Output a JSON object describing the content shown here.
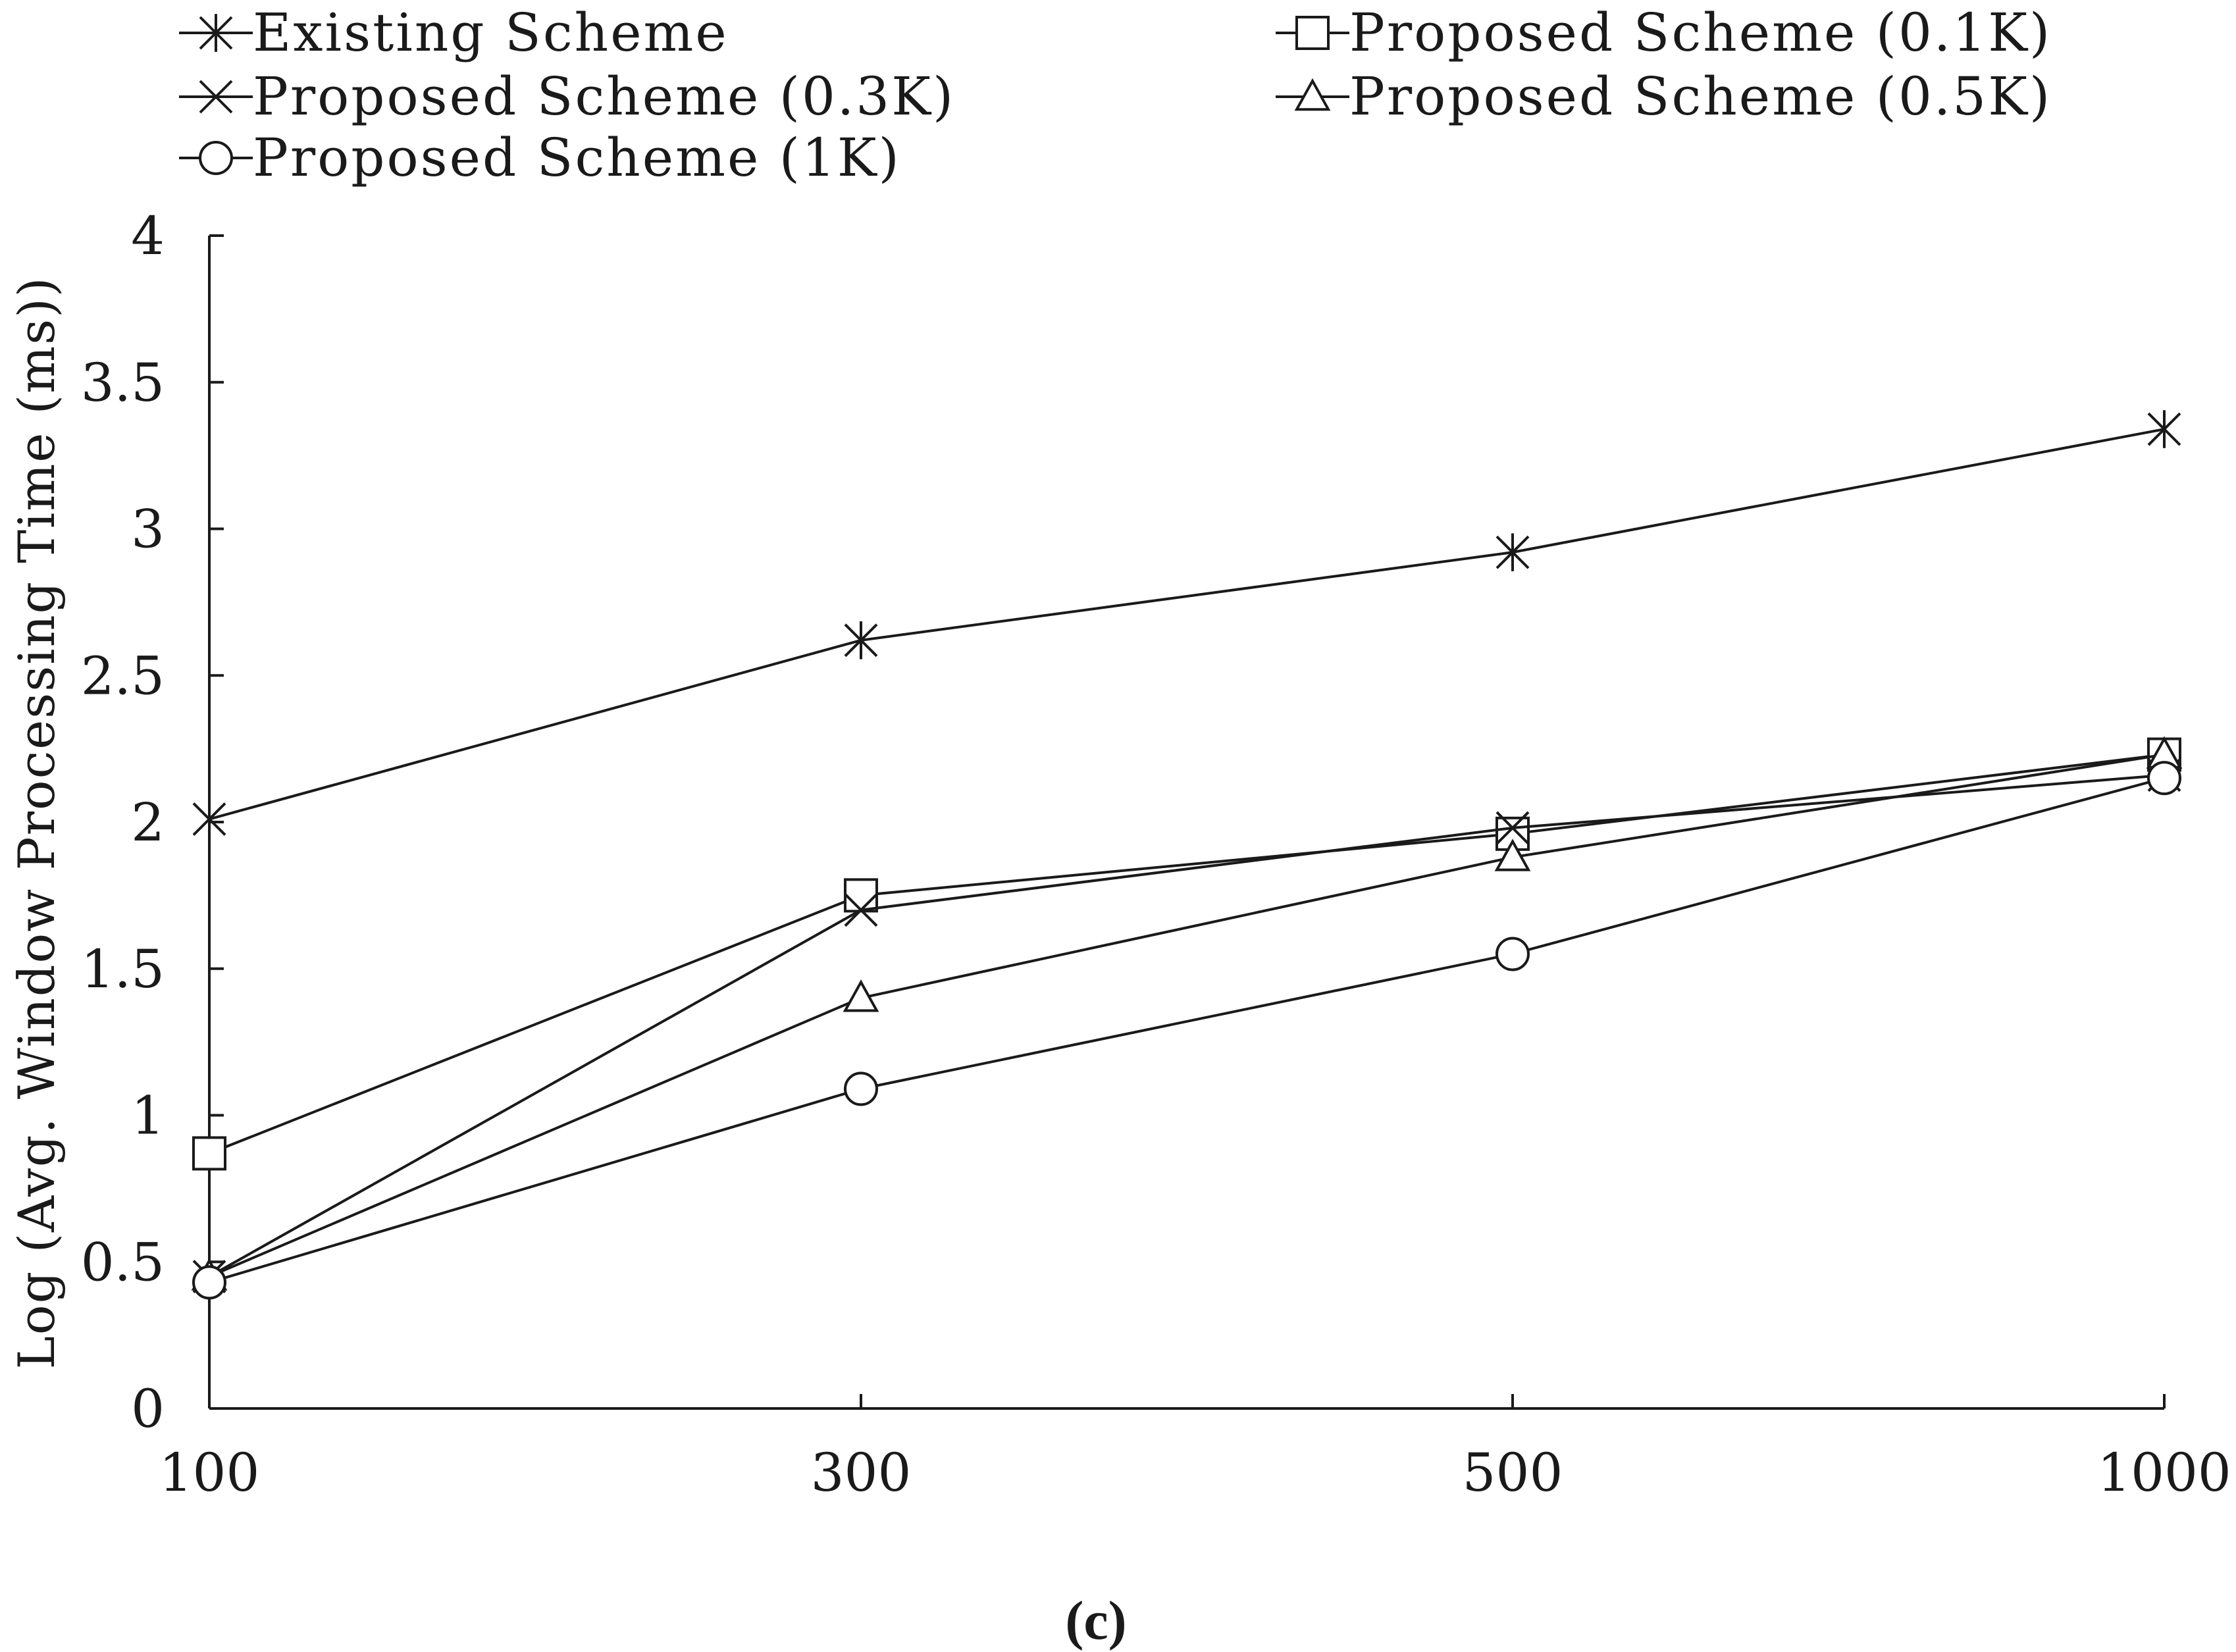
{
  "chart_data": {
    "type": "line",
    "x": [
      "100",
      "300",
      "500",
      "1000"
    ],
    "ylabel": "Log (Avg. Window Processing Time (ms))",
    "xlabel": "",
    "ylim": [
      0,
      4
    ],
    "yticks": [
      "0",
      "0.5",
      "1",
      "1.5",
      "2",
      "2.5",
      "3",
      "3.5",
      "4"
    ],
    "grid": false,
    "legend_position": "top",
    "caption": "(c)",
    "series": [
      {
        "name": "Existing Scheme",
        "marker": "asterisk",
        "values": [
          2.01,
          2.62,
          2.92,
          3.34
        ]
      },
      {
        "name": "Proposed Scheme (0.1K)",
        "marker": "square",
        "values": [
          0.87,
          1.75,
          1.96,
          2.23
        ]
      },
      {
        "name": "Proposed Scheme (0.3K)",
        "marker": "x",
        "values": [
          0.45,
          1.7,
          1.98,
          2.16
        ]
      },
      {
        "name": "Proposed Scheme (0.5K)",
        "marker": "triangle",
        "values": [
          0.45,
          1.4,
          1.88,
          2.23
        ]
      },
      {
        "name": "Proposed Scheme (1K)",
        "marker": "circle",
        "values": [
          0.43,
          1.09,
          1.55,
          2.15
        ]
      }
    ]
  }
}
